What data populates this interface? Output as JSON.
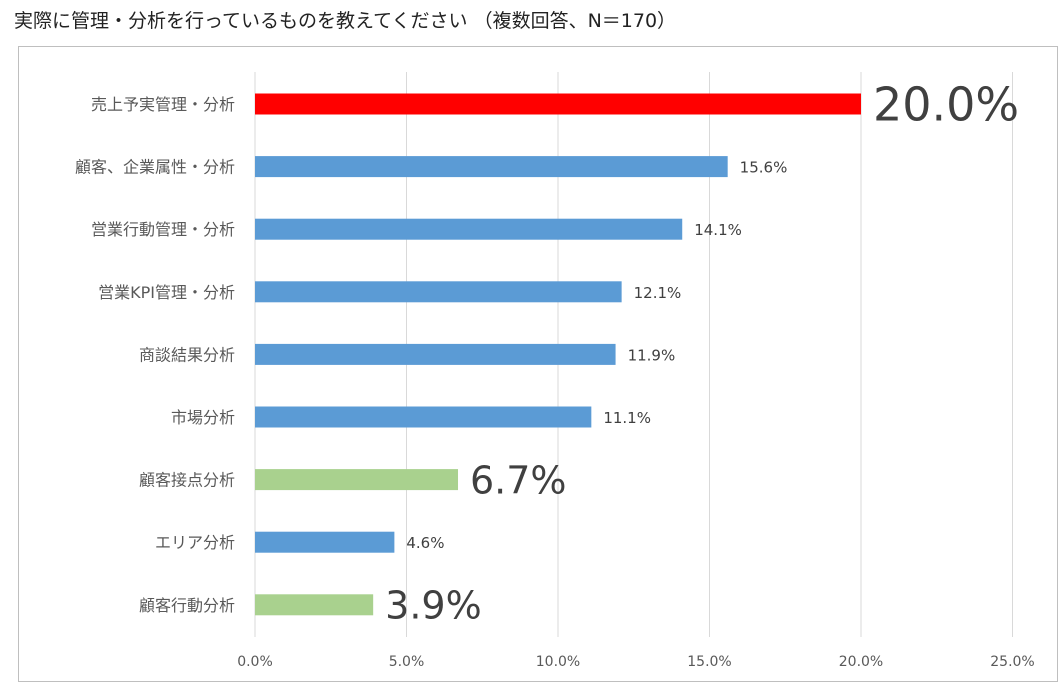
{
  "title": "実際に管理・分析を行っているものを教えてください （複数回答、N＝170）",
  "chart_data": {
    "type": "bar",
    "orientation": "horizontal",
    "categories": [
      "売上予実管理・分析",
      "顧客、企業属性・分析",
      "営業行動管理・分析",
      "営業KPI管理・分析",
      "商談結果分析",
      "市場分析",
      "顧客接点分析",
      "エリア分析",
      "顧客行動分析"
    ],
    "values": [
      20.0,
      15.6,
      14.1,
      12.1,
      11.9,
      11.1,
      6.7,
      4.6,
      3.9
    ],
    "value_labels": [
      "20.0%",
      "15.6%",
      "14.1%",
      "12.1%",
      "11.9%",
      "11.1%",
      "6.7%",
      "4.6%",
      "3.9%"
    ],
    "bar_colors": [
      "#ff0000",
      "#5b9bd5",
      "#5b9bd5",
      "#5b9bd5",
      "#5b9bd5",
      "#5b9bd5",
      "#a9d18e",
      "#5b9bd5",
      "#a9d18e"
    ],
    "emphasized": [
      true,
      false,
      false,
      false,
      false,
      false,
      true,
      false,
      true
    ],
    "xlim": [
      0,
      25
    ],
    "xticks": [
      0,
      5,
      10,
      15,
      20,
      25
    ],
    "xtick_labels": [
      "0.0%",
      "5.0%",
      "10.0%",
      "15.0%",
      "20.0%",
      "25.0%"
    ],
    "gridlines": "vertical",
    "legend": "none"
  }
}
